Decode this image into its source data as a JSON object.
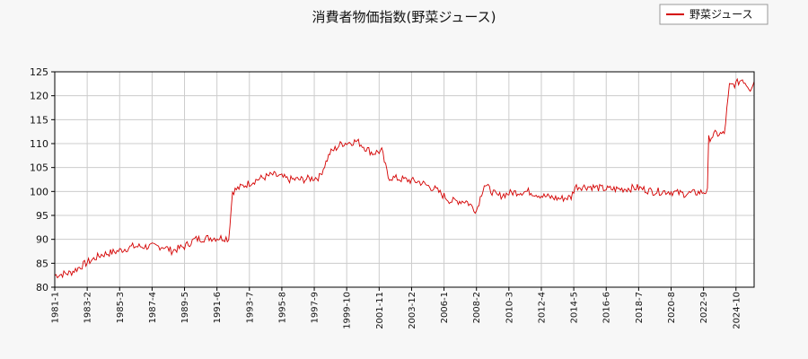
{
  "chart_data": {
    "type": "line",
    "title": "消費者物価指数(野菜ジュース)",
    "xlabel": "",
    "ylabel": "",
    "ylim": [
      80,
      125
    ],
    "yticks": [
      80,
      85,
      90,
      95,
      100,
      105,
      110,
      115,
      120,
      125
    ],
    "xlim": [
      "1981-01",
      "2025-12"
    ],
    "xticks": [
      "1981-1",
      "1983-2",
      "1985-3",
      "1987-4",
      "1989-5",
      "1991-6",
      "1993-7",
      "1995-8",
      "1997-9",
      "1999-10",
      "2001-11",
      "2003-12",
      "2006-1",
      "2008-2",
      "2010-3",
      "2012-4",
      "2014-5",
      "2016-6",
      "2018-7",
      "2020-8",
      "2022-9",
      "2024-10"
    ],
    "grid": true,
    "legend_position": "top-right",
    "colors": {
      "series": "#d40000",
      "grid": "#cccccc",
      "background": "#f7f7f7",
      "plot_background": "#ffffff"
    },
    "series": [
      {
        "name": "野菜ジュース",
        "points": [
          [
            "1981-01",
            82.5
          ],
          [
            "1982-01",
            83.0
          ],
          [
            "1983-01",
            85.0
          ],
          [
            "1984-01",
            86.8
          ],
          [
            "1985-01",
            87.5
          ],
          [
            "1986-01",
            88.5
          ],
          [
            "1987-01",
            88.5
          ],
          [
            "1988-01",
            88.5
          ],
          [
            "1988-07",
            87.6
          ],
          [
            "1989-05",
            88.5
          ],
          [
            "1990-01",
            90.0
          ],
          [
            "1991-01",
            90.3
          ],
          [
            "1992-01",
            90.3
          ],
          [
            "1992-03",
            90.0
          ],
          [
            "1992-06",
            100.0
          ],
          [
            "1993-01",
            101.0
          ],
          [
            "1994-01",
            102.5
          ],
          [
            "1995-01",
            103.5
          ],
          [
            "1995-08",
            103.0
          ],
          [
            "1996-01",
            102.5
          ],
          [
            "1997-01",
            102.5
          ],
          [
            "1998-01",
            103.0
          ],
          [
            "1998-09",
            108.0
          ],
          [
            "1999-06",
            110.0
          ],
          [
            "2000-06",
            110.5
          ],
          [
            "2001-01",
            109.0
          ],
          [
            "2001-06",
            108.0
          ],
          [
            "2002-01",
            108.5
          ],
          [
            "2002-06",
            103.0
          ],
          [
            "2003-06",
            102.5
          ],
          [
            "2004-06",
            102.0
          ],
          [
            "2005-06",
            100.5
          ],
          [
            "2006-06",
            98.0
          ],
          [
            "2007-06",
            98.0
          ],
          [
            "2008-02",
            96.0
          ],
          [
            "2008-08",
            101.5
          ],
          [
            "2009-06",
            99.0
          ],
          [
            "2010-06",
            99.8
          ],
          [
            "2011-06",
            100.0
          ],
          [
            "2012-06",
            99.0
          ],
          [
            "2013-06",
            98.5
          ],
          [
            "2014-03",
            98.8
          ],
          [
            "2014-06",
            101.0
          ],
          [
            "2015-06",
            101.0
          ],
          [
            "2016-06",
            100.5
          ],
          [
            "2017-06",
            100.5
          ],
          [
            "2018-06",
            100.8
          ],
          [
            "2019-06",
            100.0
          ],
          [
            "2020-06",
            100.0
          ],
          [
            "2021-06",
            99.5
          ],
          [
            "2022-06",
            99.8
          ],
          [
            "2022-12",
            100.0
          ],
          [
            "2023-01",
            111.0
          ],
          [
            "2023-06",
            112.0
          ],
          [
            "2024-01",
            112.0
          ],
          [
            "2024-05",
            122.0
          ],
          [
            "2024-10",
            122.5
          ],
          [
            "2025-03",
            123.5
          ],
          [
            "2025-09",
            121.5
          ],
          [
            "2025-12",
            123.0
          ]
        ]
      }
    ]
  }
}
